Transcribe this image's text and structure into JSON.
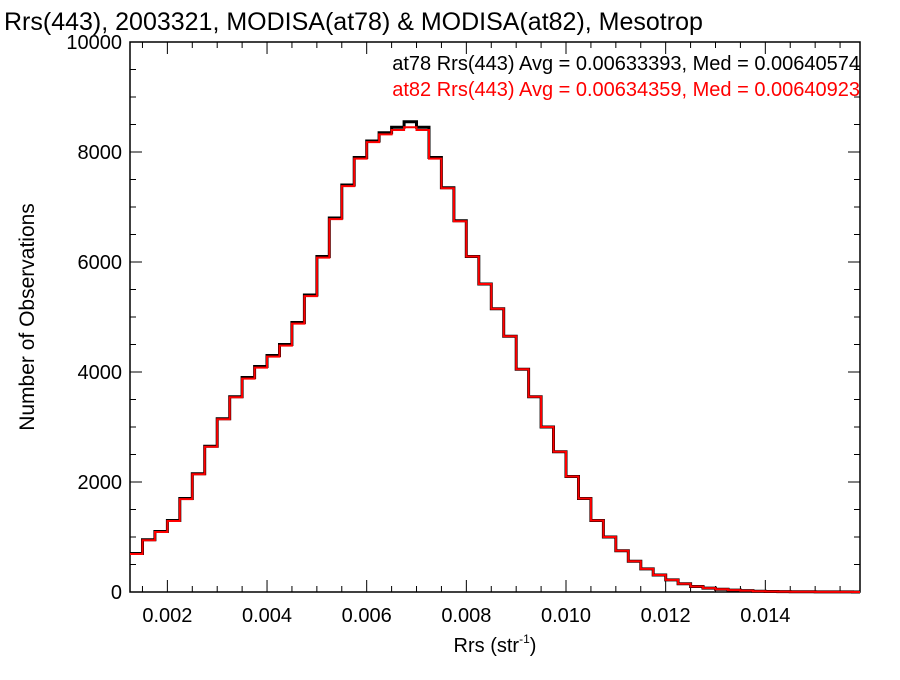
{
  "chart_data": {
    "type": "line",
    "title": "Rrs(443), 2003321, MODISA(at78) & MODISA(at82), Mesotrop",
    "xlabel": "Rrs (str",
    "xlabel_sup": "-1",
    "xlabel_close": ")",
    "ylabel": "Number of Observations",
    "xlim": [
      0.00125,
      0.0159
    ],
    "ylim": [
      0,
      10000
    ],
    "xticks": [
      0.002,
      0.004,
      0.006,
      0.008,
      0.01,
      0.012,
      0.014
    ],
    "xtick_labels": [
      "0.002",
      "0.004",
      "0.006",
      "0.008",
      "0.010",
      "0.012",
      "0.014"
    ],
    "yticks": [
      0,
      2000,
      4000,
      6000,
      8000,
      10000
    ],
    "ytick_labels": [
      "0",
      "2000",
      "4000",
      "6000",
      "8000",
      "10000"
    ],
    "grid": false,
    "legend_position": "top-right",
    "annotations": [
      "at78 Rrs(443) Avg = 0.00633393, Med = 0.00640574",
      "at82 Rrs(443) Avg = 0.00634359, Med = 0.00640923"
    ],
    "x": [
      0.00125,
      0.0015,
      0.00175,
      0.002,
      0.00225,
      0.0025,
      0.00275,
      0.003,
      0.00325,
      0.0035,
      0.00375,
      0.004,
      0.00425,
      0.0045,
      0.00475,
      0.005,
      0.00525,
      0.0055,
      0.00575,
      0.006,
      0.00625,
      0.0065,
      0.00675,
      0.007,
      0.00725,
      0.0075,
      0.00775,
      0.008,
      0.00825,
      0.0085,
      0.00875,
      0.009,
      0.00925,
      0.0095,
      0.00975,
      0.01,
      0.01025,
      0.0105,
      0.01075,
      0.011,
      0.01125,
      0.0115,
      0.01175,
      0.012,
      0.01225,
      0.0125,
      0.01275,
      0.013,
      0.01325,
      0.0135,
      0.01375,
      0.014,
      0.01425,
      0.0145,
      0.01475,
      0.015,
      0.01525,
      0.0155,
      0.01575,
      0.0159
    ],
    "series": [
      {
        "name": "at78",
        "color": "#000000",
        "values": [
          700,
          950,
          1100,
          1300,
          1700,
          2150,
          2650,
          3150,
          3550,
          3900,
          4100,
          4300,
          4500,
          4900,
          5400,
          6100,
          6800,
          7400,
          7900,
          8200,
          8350,
          8450,
          8550,
          8450,
          7900,
          7350,
          6750,
          6100,
          5600,
          5150,
          4650,
          4050,
          3550,
          3000,
          2550,
          2100,
          1700,
          1300,
          1000,
          750,
          560,
          420,
          310,
          220,
          150,
          100,
          70,
          50,
          35,
          25,
          15,
          10,
          8,
          5,
          3,
          2,
          1,
          1,
          0,
          0
        ]
      },
      {
        "name": "at82",
        "color": "#ff0000",
        "values": [
          690,
          940,
          1090,
          1290,
          1690,
          2140,
          2640,
          3140,
          3540,
          3880,
          4080,
          4280,
          4480,
          4880,
          5380,
          6080,
          6780,
          7380,
          7880,
          8180,
          8320,
          8400,
          8450,
          8400,
          7880,
          7340,
          6740,
          6100,
          5600,
          5150,
          4650,
          4050,
          3550,
          3000,
          2550,
          2100,
          1700,
          1300,
          1000,
          750,
          560,
          420,
          310,
          220,
          150,
          100,
          70,
          50,
          35,
          25,
          15,
          10,
          8,
          5,
          3,
          2,
          1,
          1,
          0,
          0
        ]
      }
    ]
  }
}
